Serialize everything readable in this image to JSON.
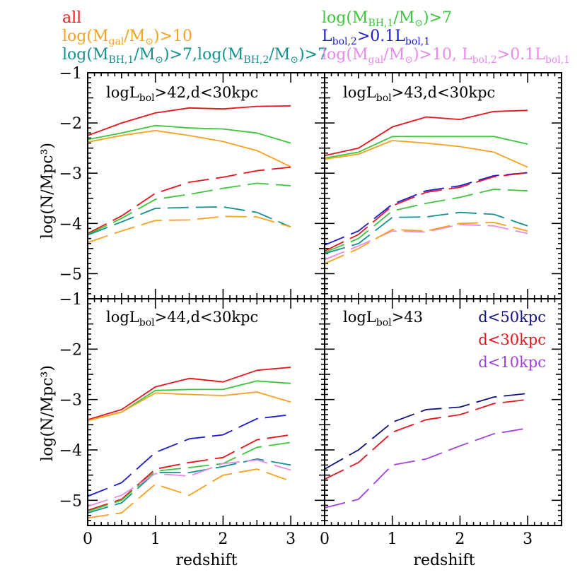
{
  "legend": [
    {
      "label": "all",
      "color": "#e8141c"
    },
    {
      "label": "log(M_gal/M_⊙)>10",
      "color": "#f7a21e"
    },
    {
      "label": "log(M_BH,1/M_⊙)>7,log(M_BH,2/M_⊙)>7",
      "color": "#13918f"
    },
    {
      "label": "log(M_BH,1/M_⊙)>7",
      "color": "#3cc63c"
    },
    {
      "label": "L_bol,2>0.1L_bol,1",
      "color": "#1b1bd6"
    },
    {
      "label": "log(M_gal/M_⊙)>10, L_bol,2>0.1L_bol,1",
      "color": "#e78ae9"
    }
  ],
  "legend_parts": {
    "all": "all",
    "mgal": {
      "a": "log(M",
      "s1": "gal",
      "b": "/M",
      "sun": "⊙",
      "c": ")>10"
    },
    "mbh2": {
      "a": "log(M",
      "s1": "BH,1",
      "b": "/M",
      "sun": "⊙",
      "c": ")>7,log(M",
      "s2": "BH,2",
      "d": "/M",
      "e": ")>7"
    },
    "mbh1": {
      "a": "log(M",
      "s1": "BH,1",
      "b": "/M",
      "sun": "⊙",
      "c": ")>7"
    },
    "lbol": {
      "a": "L",
      "s1": "bol,2",
      "b": ">0.1L",
      "s2": "bol,1"
    },
    "mgal_lbol": {
      "a": "log(M",
      "s1": "gal",
      "b": "/M",
      "sun": "⊙",
      "c": ")>10, L",
      "s2": "bol,2",
      "d": ">0.1L",
      "s3": "bol,1"
    }
  },
  "panel_titles": {
    "tl": {
      "a": "logL",
      "s": "bol",
      "b": ">42,d<30kpc"
    },
    "tr": {
      "a": "logL",
      "s": "bol",
      "b": ">43,d<30kpc"
    },
    "bl": {
      "a": "logL",
      "s": "bol",
      "b": ">44,d<30kpc"
    },
    "br": {
      "a": "logL",
      "s": "bol",
      "b": ">43"
    }
  },
  "distance_legend": [
    {
      "label": "d<50kpc",
      "color": "#111180"
    },
    {
      "label": "d<30kpc",
      "color": "#e8141c"
    },
    {
      "label": "d<10kpc",
      "color": "#a040e0"
    }
  ],
  "axes": {
    "xlabel": "redshift",
    "ylabel": "log(N/Mpc³)",
    "xlim": [
      0,
      3.5
    ],
    "ylim": [
      -5.5,
      -1
    ],
    "xticks": [
      "0",
      "1",
      "2",
      "3"
    ],
    "yticks": [
      "-1",
      "-2",
      "-3",
      "-4",
      "-5"
    ]
  },
  "chart_data": [
    {
      "type": "line",
      "title": "logL_bol>42,d<30kpc",
      "x": [
        0,
        0.5,
        1,
        1.5,
        2,
        2.5,
        3
      ],
      "series": [
        {
          "name": "all",
          "style": "solid",
          "color": "#e8141c",
          "values": [
            -2.25,
            -2.0,
            -1.8,
            -1.7,
            -1.72,
            -1.67,
            -1.66
          ]
        },
        {
          "name": "log(M_BH,1/M_⊙)>7",
          "style": "solid",
          "color": "#3cc63c",
          "values": [
            -2.33,
            -2.2,
            -2.05,
            -2.1,
            -2.12,
            -2.2,
            -2.4
          ]
        },
        {
          "name": "log(M_gal/M_⊙)>10",
          "style": "solid",
          "color": "#f7a21e",
          "values": [
            -2.38,
            -2.25,
            -2.15,
            -2.25,
            -2.37,
            -2.55,
            -2.87
          ]
        },
        {
          "name": "all",
          "style": "dashed",
          "color": "#e8141c",
          "values": [
            -4.2,
            -3.85,
            -3.4,
            -3.18,
            -3.08,
            -2.95,
            -2.88
          ]
        },
        {
          "name": "log(M_BH,1/M_⊙)>7",
          "style": "dashed",
          "color": "#3cc63c",
          "values": [
            -4.22,
            -3.9,
            -3.52,
            -3.42,
            -3.3,
            -3.2,
            -3.25
          ]
        },
        {
          "name": "log(M_BH,1/M_⊙)>7,log(M_BH,2/M_⊙)>7",
          "style": "dashed",
          "color": "#13918f",
          "values": [
            -4.23,
            -3.97,
            -3.7,
            -3.68,
            -3.67,
            -3.78,
            -4.07
          ]
        },
        {
          "name": "log(M_gal/M_⊙)>10",
          "style": "dashed",
          "color": "#f7a21e",
          "values": [
            -4.38,
            -4.15,
            -3.94,
            -3.93,
            -3.86,
            -3.87,
            -4.07
          ]
        }
      ]
    },
    {
      "type": "line",
      "title": "logL_bol>43,d<30kpc",
      "x": [
        0,
        0.5,
        1,
        1.5,
        2,
        2.5,
        3
      ],
      "series": [
        {
          "name": "all",
          "style": "solid",
          "color": "#e8141c",
          "values": [
            -2.65,
            -2.5,
            -2.08,
            -1.88,
            -1.93,
            -1.77,
            -1.75
          ]
        },
        {
          "name": "log(M_BH,1/M_⊙)>7",
          "style": "solid",
          "color": "#3cc63c",
          "values": [
            -2.7,
            -2.58,
            -2.27,
            -2.27,
            -2.27,
            -2.27,
            -2.42
          ]
        },
        {
          "name": "log(M_gal/M_⊙)>10",
          "style": "solid",
          "color": "#f7a21e",
          "values": [
            -2.72,
            -2.62,
            -2.35,
            -2.4,
            -2.47,
            -2.58,
            -2.88
          ]
        },
        {
          "name": "L_bol,2>0.1L_bol,1",
          "style": "dashed",
          "color": "#1b1bd6",
          "values": [
            -4.43,
            -4.15,
            -3.62,
            -3.35,
            -3.25,
            -3.05,
            -2.99
          ]
        },
        {
          "name": "all",
          "style": "dashed",
          "color": "#e8141c",
          "values": [
            -4.55,
            -4.22,
            -3.65,
            -3.38,
            -3.28,
            -3.07,
            -2.99
          ]
        },
        {
          "name": "log(M_BH,1/M_⊙)>7",
          "style": "dashed",
          "color": "#3cc63c",
          "values": [
            -4.58,
            -4.3,
            -3.75,
            -3.6,
            -3.48,
            -3.32,
            -3.35
          ]
        },
        {
          "name": "log(M_BH,1/M_⊙)>7,log(M_BH,2/M_⊙)>7",
          "style": "dashed",
          "color": "#13918f",
          "values": [
            -4.6,
            -4.4,
            -3.88,
            -3.87,
            -3.78,
            -3.82,
            -4.05
          ]
        },
        {
          "name": "log(M_gal/M_⊙)>10, L_bol,2>0.1L_bol,1",
          "style": "dashed",
          "color": "#e78ae9",
          "values": [
            -4.72,
            -4.45,
            -4.15,
            -4.17,
            -4.02,
            -4.05,
            -4.2
          ]
        },
        {
          "name": "log(M_gal/M_⊙)>10",
          "style": "dashed",
          "color": "#f7a21e",
          "values": [
            -4.8,
            -4.5,
            -4.12,
            -4.15,
            -4.0,
            -3.98,
            -4.15
          ]
        }
      ]
    },
    {
      "type": "line",
      "title": "logL_bol>44,d<30kpc",
      "x": [
        0,
        0.5,
        1,
        1.5,
        2,
        2.5,
        3
      ],
      "series": [
        {
          "name": "all",
          "style": "solid",
          "color": "#e8141c",
          "values": [
            -3.4,
            -3.2,
            -2.75,
            -2.58,
            -2.65,
            -2.42,
            -2.36
          ]
        },
        {
          "name": "log(M_BH,1/M_⊙)>7",
          "style": "solid",
          "color": "#3cc63c",
          "values": [
            -3.42,
            -3.25,
            -2.82,
            -2.8,
            -2.8,
            -2.63,
            -2.68
          ]
        },
        {
          "name": "log(M_gal/M_⊙)>10",
          "style": "solid",
          "color": "#f7a21e",
          "values": [
            -3.42,
            -3.25,
            -2.87,
            -2.9,
            -2.92,
            -2.85,
            -3.05
          ]
        },
        {
          "name": "L_bol,2>0.1L_bol,1",
          "style": "dashed",
          "color": "#1b1bd6",
          "values": [
            -4.92,
            -4.65,
            -4.05,
            -3.78,
            -3.7,
            -3.38,
            -3.3
          ]
        },
        {
          "name": "all",
          "style": "dashed",
          "color": "#e8141c",
          "values": [
            -5.2,
            -4.98,
            -4.38,
            -4.25,
            -4.15,
            -3.8,
            -3.7
          ]
        },
        {
          "name": "log(M_BH,1/M_⊙)>7",
          "style": "dashed",
          "color": "#3cc63c",
          "values": [
            -5.22,
            -5.0,
            -4.42,
            -4.35,
            -4.27,
            -3.95,
            -3.85
          ]
        },
        {
          "name": "log(M_BH,1/M_⊙)>7,log(M_BH,2/M_⊙)>7",
          "style": "dashed",
          "color": "#13918f",
          "values": [
            -5.25,
            -5.05,
            -4.45,
            -4.45,
            -4.33,
            -4.18,
            -4.3
          ]
        },
        {
          "name": "log(M_gal/M_⊙)>10, L_bol,2>0.1L_bol,1",
          "style": "dashed",
          "color": "#e78ae9",
          "values": [
            -5.12,
            -4.9,
            -4.47,
            -4.52,
            -4.27,
            -4.2,
            -4.4
          ]
        },
        {
          "name": "log(M_gal/M_⊙)>10",
          "style": "dashed",
          "color": "#f7a21e",
          "values": [
            -5.35,
            -5.25,
            -4.68,
            -4.9,
            -4.5,
            -4.38,
            -4.62
          ]
        }
      ]
    },
    {
      "type": "line",
      "title": "logL_bol>43",
      "x": [
        0,
        0.5,
        1,
        1.5,
        2,
        2.5,
        3
      ],
      "series": [
        {
          "name": "d<50kpc",
          "style": "dashed",
          "color": "#111180",
          "values": [
            -4.38,
            -4.0,
            -3.45,
            -3.2,
            -3.15,
            -2.95,
            -2.88
          ]
        },
        {
          "name": "d<30kpc",
          "style": "dashed",
          "color": "#e8141c",
          "values": [
            -4.58,
            -4.25,
            -3.65,
            -3.4,
            -3.3,
            -3.08,
            -3.0
          ]
        },
        {
          "name": "d<10kpc",
          "style": "dashed",
          "color": "#a040e0",
          "values": [
            -5.15,
            -4.98,
            -4.3,
            -4.18,
            -3.92,
            -3.68,
            -3.57
          ]
        }
      ]
    }
  ]
}
